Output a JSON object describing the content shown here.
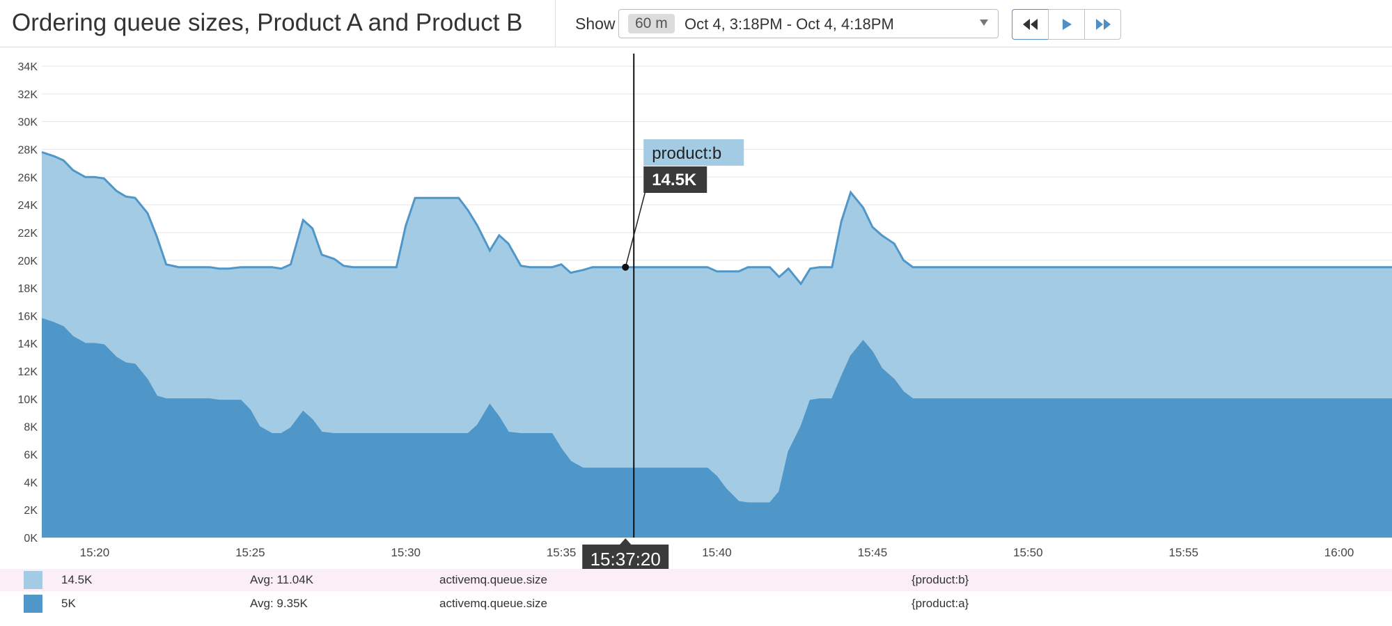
{
  "header": {
    "title": "Ordering queue sizes, Product A and Product B",
    "show_label": "Show",
    "range_chip": "60 m",
    "range_text": "Oct 4, 3:18PM - Oct 4, 4:18PM"
  },
  "tooltip": {
    "series_label": "product:b",
    "value": "14.5K",
    "time": "15:37:20",
    "time_minutes": 37.33
  },
  "legend": [
    {
      "value": "14.5K",
      "avg": "Avg: 11.04K",
      "metric": "activemq.queue.size",
      "scope": "{product:b}",
      "color": "#a3cbe3"
    },
    {
      "value": "5K",
      "avg": "Avg: 9.35K",
      "metric": "activemq.queue.size",
      "scope": "{product:a}",
      "color": "#4f96c9"
    }
  ],
  "colors": {
    "upper_fill": "#a3cbe3",
    "lower_fill": "#4f96c9",
    "line": "#4f96c9",
    "grid": "#e5e5e5",
    "tooltip_label_bg": "#a3cbe3",
    "tooltip_value_bg": "#3a3a3a"
  },
  "icons": [
    "rewind-icon",
    "play-icon",
    "fast-forward-icon",
    "chevron-down-icon"
  ],
  "chart_data": {
    "type": "area",
    "stacked": true,
    "title": "Ordering queue sizes, Product A and Product B",
    "x_unit": "minutes past 15:00",
    "xlim": [
      18.3,
      61.7
    ],
    "ylim": [
      0,
      34000
    ],
    "grid": true,
    "x_ticks": [
      20,
      25,
      30,
      35,
      40,
      45,
      50,
      55,
      60
    ],
    "x_tick_labels": [
      "15:20",
      "15:25",
      "15:30",
      "15:35",
      "15:40",
      "15:45",
      "15:50",
      "15:55",
      "16:00"
    ],
    "y_ticks": [
      0,
      2000,
      4000,
      6000,
      8000,
      10000,
      12000,
      14000,
      16000,
      18000,
      20000,
      22000,
      24000,
      26000,
      28000,
      30000,
      32000,
      34000
    ],
    "y_tick_labels": [
      "0K",
      "2K",
      "4K",
      "6K",
      "8K",
      "10K",
      "12K",
      "14K",
      "16K",
      "18K",
      "20K",
      "22K",
      "24K",
      "26K",
      "28K",
      "30K",
      "32K",
      "34K"
    ],
    "series": [
      {
        "name": "{product:a}",
        "x": [
          18.3,
          18.7,
          19.0,
          19.3,
          19.7,
          20.0,
          20.3,
          20.7,
          21.0,
          21.3,
          21.7,
          22.0,
          22.3,
          22.7,
          23.0,
          23.3,
          23.7,
          24.0,
          24.3,
          24.7,
          25.0,
          25.3,
          25.7,
          26.0,
          26.3,
          26.7,
          27.0,
          27.3,
          27.7,
          28.0,
          28.3,
          28.7,
          29.0,
          29.3,
          29.7,
          30.0,
          30.3,
          30.7,
          31.0,
          31.3,
          31.7,
          32.0,
          32.3,
          32.7,
          33.0,
          33.3,
          33.7,
          34.0,
          34.3,
          34.7,
          35.0,
          35.3,
          35.7,
          36.0,
          36.3,
          36.7,
          37.0,
          37.3,
          37.7,
          38.0,
          38.3,
          38.7,
          39.0,
          39.3,
          39.7,
          40.0,
          40.3,
          40.7,
          41.0,
          41.3,
          41.7,
          42.0,
          42.3,
          42.7,
          43.0,
          43.3,
          43.7,
          44.0,
          44.3,
          44.7,
          45.0,
          45.3,
          45.7,
          46.0,
          46.3,
          61.7
        ],
        "values": [
          15800,
          15500,
          15200,
          14500,
          14000,
          14000,
          13900,
          13000,
          12600,
          12500,
          11400,
          10200,
          10000,
          10000,
          10000,
          10000,
          10000,
          9900,
          9900,
          9900,
          9200,
          8000,
          7500,
          7500,
          7900,
          9100,
          8500,
          7600,
          7500,
          7500,
          7500,
          7500,
          7500,
          7500,
          7500,
          7500,
          7500,
          7500,
          7500,
          7500,
          7500,
          7500,
          8100,
          9600,
          8700,
          7600,
          7500,
          7500,
          7500,
          7500,
          6400,
          5500,
          5000,
          5000,
          5000,
          5000,
          5000,
          5000,
          5000,
          5000,
          5000,
          5000,
          5000,
          5000,
          5000,
          4400,
          3500,
          2600,
          2500,
          2500,
          2500,
          3300,
          6200,
          8000,
          9900,
          10000,
          10000,
          11600,
          13100,
          14200,
          13400,
          12200,
          11400,
          10500,
          10000,
          10000
        ]
      },
      {
        "name": "{product:b}",
        "x": [
          18.3,
          18.7,
          19.0,
          19.3,
          19.7,
          20.0,
          20.3,
          20.7,
          21.0,
          21.3,
          21.7,
          22.0,
          22.3,
          22.7,
          23.0,
          23.3,
          23.7,
          24.0,
          24.3,
          24.7,
          25.0,
          25.3,
          25.7,
          26.0,
          26.3,
          26.7,
          27.0,
          27.3,
          27.7,
          28.0,
          28.3,
          28.7,
          29.0,
          29.3,
          29.7,
          30.0,
          30.3,
          30.7,
          31.0,
          31.3,
          31.7,
          32.0,
          32.3,
          32.7,
          33.0,
          33.3,
          33.7,
          34.0,
          34.3,
          34.7,
          35.0,
          35.3,
          35.7,
          36.0,
          36.3,
          36.7,
          37.0,
          37.3,
          37.7,
          38.0,
          38.3,
          38.7,
          39.0,
          39.3,
          39.7,
          40.0,
          40.3,
          40.7,
          41.0,
          41.3,
          41.7,
          42.0,
          42.3,
          42.7,
          43.0,
          43.3,
          43.7,
          44.0,
          44.3,
          44.7,
          45.0,
          45.3,
          45.7,
          46.0,
          46.3,
          61.7
        ],
        "values": [
          12000,
          12000,
          12000,
          12000,
          12000,
          12000,
          12000,
          12000,
          12000,
          12000,
          12000,
          11500,
          9700,
          9500,
          9500,
          9500,
          9500,
          9500,
          9500,
          9600,
          10300,
          11500,
          12000,
          11900,
          11800,
          13800,
          13800,
          12800,
          12600,
          12100,
          12000,
          12000,
          12000,
          12000,
          12000,
          15000,
          17000,
          17000,
          17000,
          17000,
          17000,
          16100,
          14400,
          11100,
          13100,
          13600,
          12100,
          12000,
          12000,
          12000,
          13300,
          13600,
          14300,
          14500,
          14500,
          14500,
          14500,
          14500,
          14500,
          14500,
          14500,
          14500,
          14500,
          14500,
          14500,
          14800,
          15700,
          16600,
          17000,
          17000,
          17000,
          15500,
          13200,
          10300,
          9500,
          9500,
          9500,
          11200,
          11800,
          9600,
          9000,
          9600,
          9800,
          9500,
          9500,
          9500
        ]
      }
    ],
    "cursor_x": 37.33
  }
}
